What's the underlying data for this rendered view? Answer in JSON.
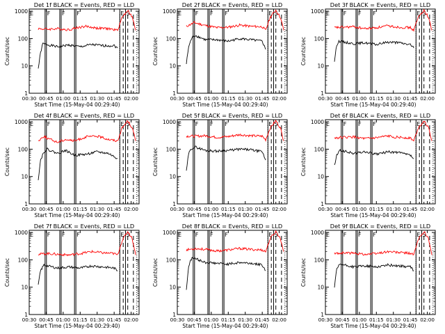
{
  "shared": {
    "xlabel": "Start Time (15-May-04 00:29:40)",
    "ylabel": "Counts/sec",
    "xticks": [
      "00:30",
      "00:45",
      "01:00",
      "01:15",
      "01:30",
      "01:45",
      "02:00"
    ],
    "yticks": [
      "1",
      "10",
      "100",
      "1000"
    ],
    "marker_labels": [
      "F",
      "F",
      "F",
      "E",
      "S"
    ],
    "colors": {
      "events": "#000000",
      "lld": "#ff0000"
    }
  },
  "chart_data": [
    {
      "type": "line",
      "title": "Det 1f BLACK = Events, RED = LLD",
      "xlim_minutes": [
        30,
        127
      ],
      "ylim": [
        1,
        1200
      ],
      "log_y": true,
      "series": [
        {
          "name": "BLACK = Events",
          "color": "#000000",
          "knots": [
            [
              38,
              8
            ],
            [
              40,
              30
            ],
            [
              42,
              65
            ],
            [
              46,
              60
            ],
            [
              55,
              50
            ],
            [
              65,
              58
            ],
            [
              75,
              50
            ],
            [
              85,
              60
            ],
            [
              95,
              55
            ],
            [
              105,
              55
            ],
            [
              108,
              45
            ]
          ]
        },
        {
          "name": "RED = LLD",
          "color": "#ff0000",
          "knots": [
            [
              38,
              230
            ],
            [
              46,
              220
            ],
            [
              55,
              230
            ],
            [
              65,
              210
            ],
            [
              72,
              250
            ],
            [
              80,
              280
            ],
            [
              90,
              240
            ],
            [
              100,
              230
            ],
            [
              108,
              200
            ],
            [
              112,
              600
            ],
            [
              117,
              1100
            ],
            [
              121,
              600
            ],
            [
              124,
              200
            ]
          ]
        }
      ]
    },
    {
      "type": "line",
      "title": "Det 2f BLACK = Events, RED = LLD",
      "xlim_minutes": [
        30,
        127
      ],
      "ylim": [
        1,
        1200
      ],
      "log_y": true,
      "series": [
        {
          "name": "BLACK = Events",
          "color": "#000000",
          "knots": [
            [
              38,
              12
            ],
            [
              40,
              50
            ],
            [
              43,
              110
            ],
            [
              46,
              130
            ],
            [
              55,
              90
            ],
            [
              65,
              90
            ],
            [
              75,
              80
            ],
            [
              85,
              100
            ],
            [
              95,
              90
            ],
            [
              105,
              80
            ],
            [
              108,
              40
            ]
          ]
        },
        {
          "name": "RED = LLD",
          "color": "#ff0000",
          "knots": [
            [
              38,
              280
            ],
            [
              45,
              380
            ],
            [
              55,
              300
            ],
            [
              65,
              250
            ],
            [
              75,
              260
            ],
            [
              85,
              310
            ],
            [
              95,
              280
            ],
            [
              105,
              270
            ],
            [
              108,
              200
            ],
            [
              112,
              600
            ],
            [
              117,
              1100
            ],
            [
              121,
              600
            ],
            [
              124,
              200
            ]
          ]
        }
      ]
    },
    {
      "type": "line",
      "title": "Det 3f BLACK = Events, RED = LLD",
      "xlim_minutes": [
        30,
        127
      ],
      "ylim": [
        1,
        1200
      ],
      "log_y": true,
      "series": [
        {
          "name": "BLACK = Events",
          "color": "#000000",
          "knots": [
            [
              38,
              15
            ],
            [
              40,
              60
            ],
            [
              42,
              80
            ],
            [
              46,
              75
            ],
            [
              55,
              65
            ],
            [
              65,
              70
            ],
            [
              75,
              60
            ],
            [
              85,
              75
            ],
            [
              95,
              70
            ],
            [
              105,
              60
            ],
            [
              108,
              45
            ]
          ]
        },
        {
          "name": "RED = LLD",
          "color": "#ff0000",
          "knots": [
            [
              38,
              250
            ],
            [
              46,
              260
            ],
            [
              55,
              270
            ],
            [
              65,
              230
            ],
            [
              75,
              250
            ],
            [
              85,
              290
            ],
            [
              95,
              260
            ],
            [
              105,
              250
            ],
            [
              108,
              200
            ],
            [
              112,
              600
            ],
            [
              117,
              1100
            ],
            [
              121,
              600
            ],
            [
              124,
              200
            ]
          ]
        }
      ]
    },
    {
      "type": "line",
      "title": "Det 4f BLACK = Events, RED = LLD",
      "xlim_minutes": [
        30,
        127
      ],
      "ylim": [
        1,
        1200
      ],
      "log_y": true,
      "series": [
        {
          "name": "BLACK = Events",
          "color": "#000000",
          "knots": [
            [
              38,
              8
            ],
            [
              40,
              40
            ],
            [
              43,
              80
            ],
            [
              46,
              100
            ],
            [
              55,
              70
            ],
            [
              62,
              90
            ],
            [
              70,
              60
            ],
            [
              80,
              65
            ],
            [
              90,
              80
            ],
            [
              100,
              70
            ],
            [
              108,
              45
            ]
          ]
        },
        {
          "name": "RED = LLD",
          "color": "#ff0000",
          "knots": [
            [
              38,
              200
            ],
            [
              43,
              300
            ],
            [
              46,
              250
            ],
            [
              55,
              180
            ],
            [
              62,
              230
            ],
            [
              70,
              200
            ],
            [
              80,
              280
            ],
            [
              90,
              300
            ],
            [
              100,
              230
            ],
            [
              108,
              200
            ],
            [
              112,
              600
            ],
            [
              117,
              1100
            ],
            [
              121,
              600
            ],
            [
              124,
              200
            ]
          ]
        }
      ]
    },
    {
      "type": "line",
      "title": "Det 5f BLACK = Events, RED = LLD",
      "xlim_minutes": [
        30,
        127
      ],
      "ylim": [
        1,
        1200
      ],
      "log_y": true,
      "series": [
        {
          "name": "BLACK = Events",
          "color": "#000000",
          "knots": [
            [
              38,
              15
            ],
            [
              40,
              70
            ],
            [
              43,
              110
            ],
            [
              46,
              120
            ],
            [
              55,
              90
            ],
            [
              65,
              85
            ],
            [
              75,
              90
            ],
            [
              85,
              100
            ],
            [
              95,
              95
            ],
            [
              105,
              80
            ],
            [
              108,
              40
            ]
          ]
        },
        {
          "name": "RED = LLD",
          "color": "#ff0000",
          "knots": [
            [
              38,
              300
            ],
            [
              46,
              300
            ],
            [
              55,
              310
            ],
            [
              65,
              270
            ],
            [
              75,
              290
            ],
            [
              85,
              340
            ],
            [
              95,
              310
            ],
            [
              105,
              300
            ],
            [
              108,
              220
            ],
            [
              112,
              600
            ],
            [
              117,
              1100
            ],
            [
              121,
              600
            ],
            [
              124,
              200
            ]
          ]
        }
      ]
    },
    {
      "type": "line",
      "title": "Det 6f BLACK = Events, RED = LLD",
      "xlim_minutes": [
        30,
        127
      ],
      "ylim": [
        1,
        1200
      ],
      "log_y": true,
      "series": [
        {
          "name": "BLACK = Events",
          "color": "#000000",
          "knots": [
            [
              38,
              25
            ],
            [
              40,
              60
            ],
            [
              43,
              90
            ],
            [
              46,
              85
            ],
            [
              55,
              70
            ],
            [
              65,
              80
            ],
            [
              75,
              65
            ],
            [
              85,
              80
            ],
            [
              95,
              75
            ],
            [
              105,
              60
            ],
            [
              108,
              45
            ]
          ]
        },
        {
          "name": "RED = LLD",
          "color": "#ff0000",
          "knots": [
            [
              38,
              260
            ],
            [
              46,
              270
            ],
            [
              55,
              280
            ],
            [
              65,
              240
            ],
            [
              75,
              260
            ],
            [
              85,
              300
            ],
            [
              95,
              270
            ],
            [
              105,
              260
            ],
            [
              108,
              200
            ],
            [
              112,
              600
            ],
            [
              117,
              1100
            ],
            [
              121,
              600
            ],
            [
              124,
              200
            ]
          ]
        }
      ]
    },
    {
      "type": "line",
      "title": "Det 7f BLACK = Events, RED = LLD",
      "xlim_minutes": [
        30,
        127
      ],
      "ylim": [
        1,
        1200
      ],
      "log_y": true,
      "series": [
        {
          "name": "BLACK = Events",
          "color": "#000000",
          "knots": [
            [
              38,
              12
            ],
            [
              40,
              40
            ],
            [
              43,
              65
            ],
            [
              46,
              60
            ],
            [
              55,
              50
            ],
            [
              65,
              55
            ],
            [
              75,
              50
            ],
            [
              85,
              60
            ],
            [
              95,
              55
            ],
            [
              105,
              50
            ],
            [
              108,
              40
            ]
          ]
        },
        {
          "name": "RED = LLD",
          "color": "#ff0000",
          "knots": [
            [
              38,
              160
            ],
            [
              46,
              170
            ],
            [
              55,
              160
            ],
            [
              65,
              150
            ],
            [
              75,
              170
            ],
            [
              85,
              200
            ],
            [
              95,
              180
            ],
            [
              105,
              170
            ],
            [
              108,
              150
            ],
            [
              112,
              500
            ],
            [
              117,
              1100
            ],
            [
              121,
              600
            ],
            [
              124,
              150
            ]
          ]
        }
      ]
    },
    {
      "type": "line",
      "title": "Det 8f BLACK = Events, RED = LLD",
      "xlim_minutes": [
        30,
        127
      ],
      "ylim": [
        1,
        1200
      ],
      "log_y": true,
      "series": [
        {
          "name": "BLACK = Events",
          "color": "#000000",
          "knots": [
            [
              38,
              8
            ],
            [
              40,
              60
            ],
            [
              43,
              120
            ],
            [
              46,
              110
            ],
            [
              55,
              80
            ],
            [
              65,
              75
            ],
            [
              75,
              70
            ],
            [
              85,
              80
            ],
            [
              95,
              75
            ],
            [
              105,
              65
            ],
            [
              108,
              40
            ]
          ]
        },
        {
          "name": "RED = LLD",
          "color": "#ff0000",
          "knots": [
            [
              38,
              230
            ],
            [
              46,
              260
            ],
            [
              55,
              240
            ],
            [
              65,
              210
            ],
            [
              75,
              230
            ],
            [
              85,
              260
            ],
            [
              95,
              240
            ],
            [
              105,
              230
            ],
            [
              108,
              200
            ],
            [
              112,
              600
            ],
            [
              117,
              1100
            ],
            [
              121,
              600
            ],
            [
              124,
              200
            ]
          ]
        }
      ]
    },
    {
      "type": "line",
      "title": "Det 9f BLACK = Events, RED = LLD",
      "xlim_minutes": [
        30,
        127
      ],
      "ylim": [
        1,
        1200
      ],
      "log_y": true,
      "series": [
        {
          "name": "BLACK = Events",
          "color": "#000000",
          "knots": [
            [
              38,
              10
            ],
            [
              40,
              45
            ],
            [
              43,
              70
            ],
            [
              46,
              65
            ],
            [
              55,
              55
            ],
            [
              65,
              60
            ],
            [
              75,
              55
            ],
            [
              85,
              65
            ],
            [
              95,
              60
            ],
            [
              105,
              55
            ],
            [
              108,
              40
            ]
          ]
        },
        {
          "name": "RED = LLD",
          "color": "#ff0000",
          "knots": [
            [
              38,
              170
            ],
            [
              46,
              180
            ],
            [
              55,
              175
            ],
            [
              65,
              160
            ],
            [
              75,
              170
            ],
            [
              85,
              200
            ],
            [
              95,
              185
            ],
            [
              105,
              175
            ],
            [
              108,
              150
            ],
            [
              112,
              550
            ],
            [
              117,
              1100
            ],
            [
              121,
              600
            ],
            [
              124,
              150
            ]
          ]
        }
      ]
    }
  ]
}
